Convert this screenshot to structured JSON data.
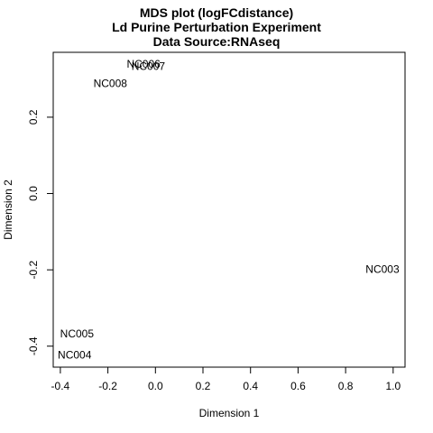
{
  "chart_data": {
    "type": "scatter",
    "title": [
      "MDS plot (logFCdistance)",
      "Ld Purine Perturbation Experiment",
      "Data Source:RNAseq"
    ],
    "xlabel": "Dimension 1",
    "ylabel": "Dimension 2",
    "xlim": [
      -0.43,
      1.05
    ],
    "ylim": [
      -0.455,
      0.37
    ],
    "xticks": [
      -0.4,
      -0.2,
      0.0,
      0.2,
      0.4,
      0.6,
      0.8,
      1.0
    ],
    "xtick_labels": [
      "-0.4",
      "-0.2",
      "0.0",
      "0.2",
      "0.4",
      "0.6",
      "0.8",
      "1.0"
    ],
    "yticks": [
      -0.4,
      -0.2,
      0.0,
      0.2
    ],
    "ytick_labels": [
      "-0.4",
      "-0.2",
      "0.0",
      "0.2"
    ],
    "grid": false,
    "points": [
      {
        "label": "NC003",
        "x": 0.955,
        "y": -0.198
      },
      {
        "label": "NC004",
        "x": -0.34,
        "y": -0.423
      },
      {
        "label": "NC005",
        "x": -0.33,
        "y": -0.368
      },
      {
        "label": "NC006",
        "x": -0.05,
        "y": 0.339
      },
      {
        "label": "NC007",
        "x": -0.03,
        "y": 0.333
      },
      {
        "label": "NC008",
        "x": -0.19,
        "y": 0.288
      }
    ]
  }
}
